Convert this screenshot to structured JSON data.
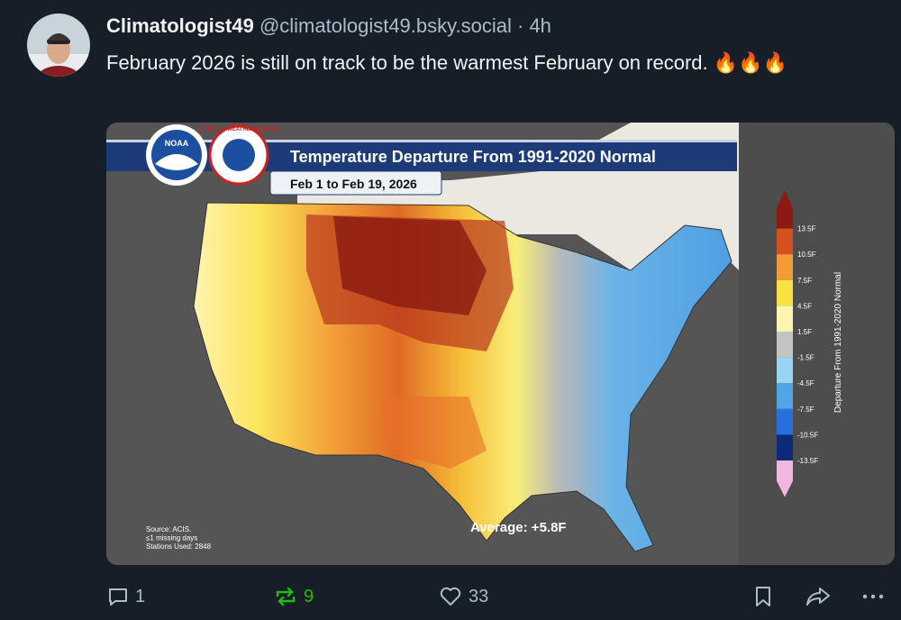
{
  "post": {
    "author": {
      "display_name": "Climatologist49",
      "handle": "@climatologist49.bsky.social",
      "separator": "·",
      "time": "4h"
    },
    "text": "February 2026 is still on track to be the warmest February on record. 🔥🔥🔥",
    "image": {
      "logo_noaa": "NOAA",
      "logo_nws": "NATIONAL WEATHER SERVICE",
      "title": "Temperature Departure From 1991-2020 Normal",
      "subtitle": "Feb 1 to Feb 19, 2026",
      "legend_title": "Departure From 1991-2020 Normal",
      "legend_labels": [
        "13.5F",
        "10.5F",
        "7.5F",
        "4.5F",
        "1.5F",
        "-1.5F",
        "-4.5F",
        "-7.5F",
        "-10.5F",
        "-13.5F"
      ],
      "source_lines": [
        "Source: ACIS.",
        "≤1 missing days",
        "Stations Used: 2848"
      ],
      "average": "Average: +5.8F"
    },
    "actions": {
      "replies": 1,
      "reposts": 9,
      "likes": 33
    }
  }
}
